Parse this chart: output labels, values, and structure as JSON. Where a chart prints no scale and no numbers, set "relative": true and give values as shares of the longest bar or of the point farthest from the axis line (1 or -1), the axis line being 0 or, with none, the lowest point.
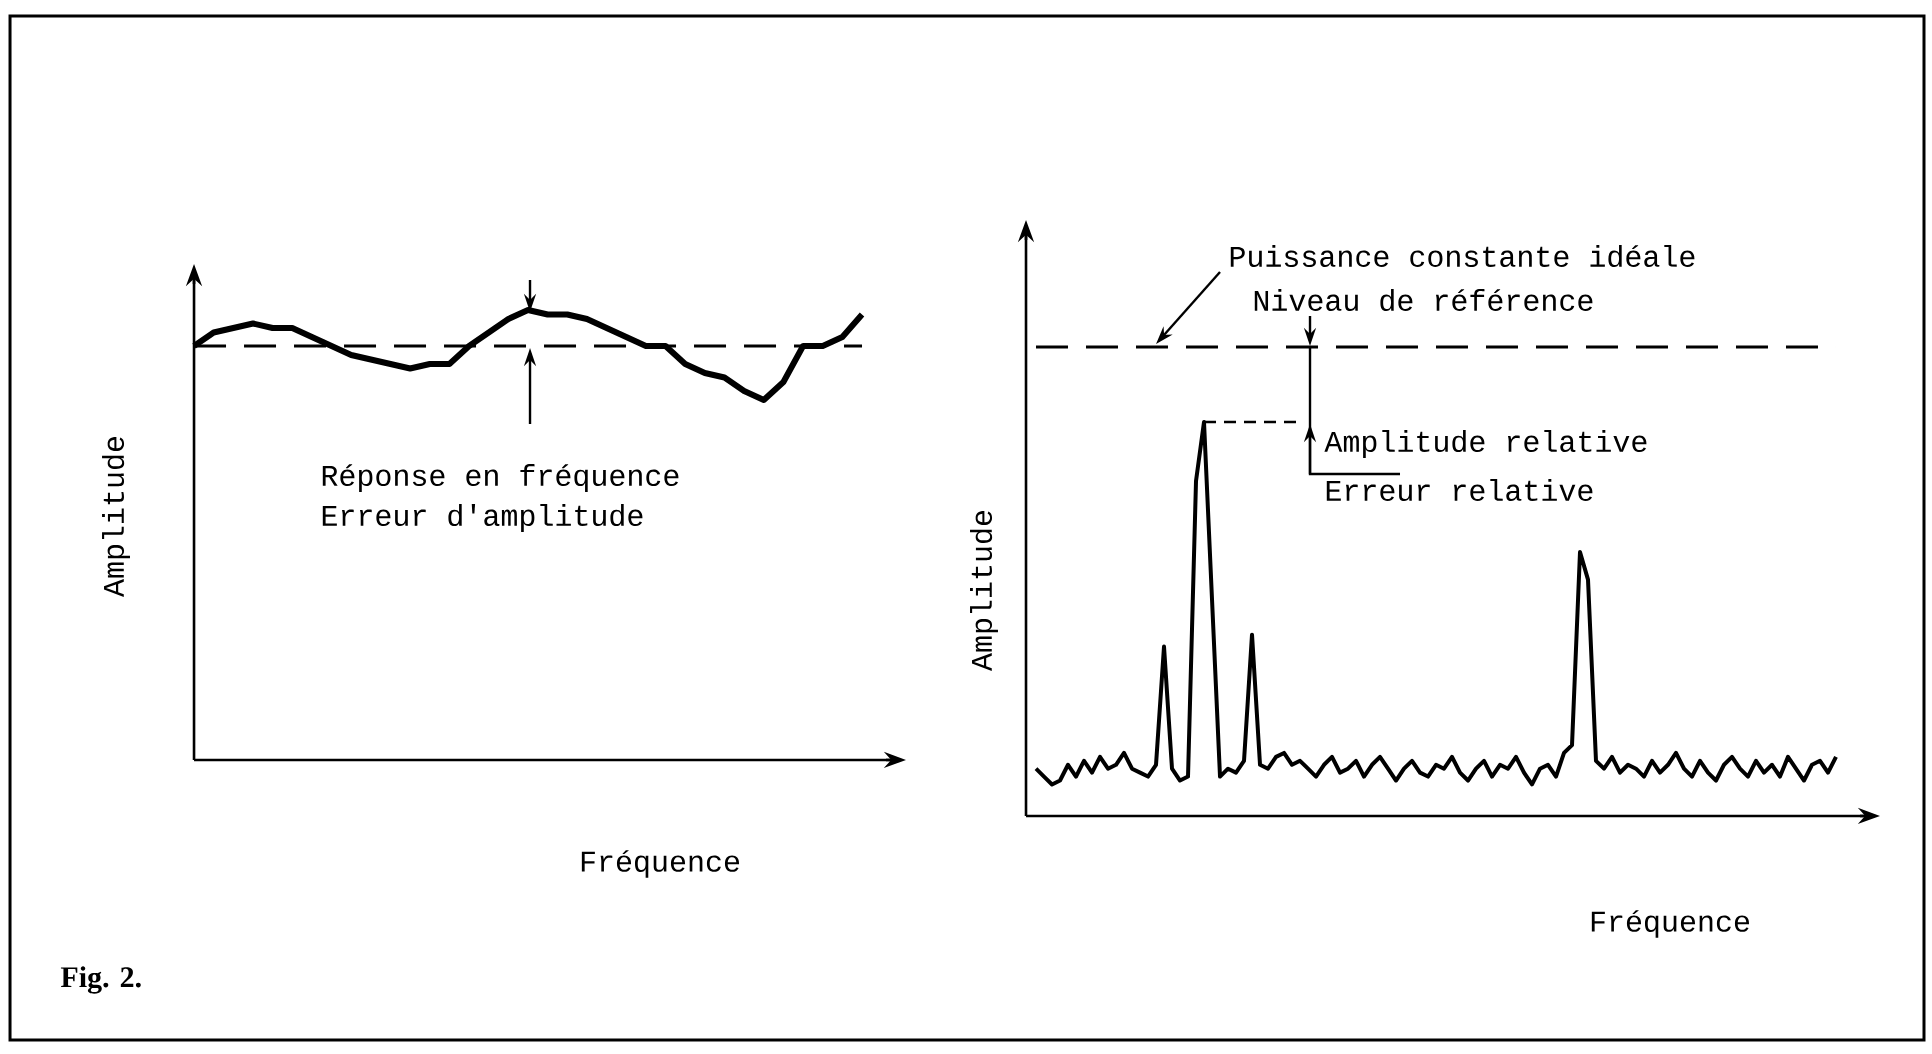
{
  "chart_data": [
    {
      "type": "line",
      "relative": true,
      "xlabel": "Fréquence",
      "ylabel": "Amplitude",
      "line_style": "solid",
      "categories": [
        null,
        null,
        null,
        null,
        null,
        null,
        null,
        null,
        null,
        null,
        null,
        null,
        null,
        null,
        null,
        null,
        null,
        null,
        null,
        null,
        null,
        null,
        null,
        null,
        null,
        null,
        null,
        null,
        null,
        null,
        null,
        null,
        null,
        null,
        null
      ],
      "series": [
        {
          "color": "#000000",
          "values": [
            0.92,
            0.95,
            0.96,
            0.97,
            0.96,
            0.96,
            0.94,
            0.92,
            0.9,
            0.89,
            0.88,
            0.87,
            0.88,
            0.88,
            0.92,
            0.95,
            0.98,
            1.0,
            0.99,
            0.99,
            0.98,
            0.96,
            0.94,
            0.92,
            0.92,
            0.88,
            0.86,
            0.85,
            0.82,
            0.8,
            0.84,
            0.92,
            0.92,
            0.94,
            0.99
          ]
        }
      ],
      "ref_lines": [
        {
          "axis": "y",
          "value": 0.92,
          "color": "#000000",
          "line_style": "dashed"
        }
      ],
      "annotations": [
        "Réponse en fréquence",
        "Erreur d'amplitude",
        "Fig. 2."
      ]
    },
    {
      "type": "line",
      "relative": true,
      "xlabel": "Fréquence",
      "ylabel": "Amplitude",
      "line_style": "solid",
      "categories": [
        null,
        null,
        null,
        null,
        null,
        null,
        null,
        null,
        null,
        null,
        null,
        null,
        null,
        null,
        null,
        null,
        null,
        null,
        null,
        null,
        null,
        null,
        null,
        null,
        null,
        null,
        null,
        null,
        null,
        null,
        null,
        null,
        null,
        null,
        null,
        null,
        null,
        null,
        null,
        null,
        null,
        null,
        null,
        null,
        null,
        null,
        null,
        null,
        null,
        null,
        null,
        null,
        null,
        null,
        null,
        null,
        null,
        null,
        null,
        null,
        null,
        null,
        null,
        null,
        null,
        null,
        null,
        null,
        null,
        null,
        null,
        null,
        null,
        null,
        null,
        null,
        null,
        null,
        null,
        null,
        null,
        null,
        null,
        null,
        null,
        null,
        null,
        null,
        null,
        null,
        null,
        null,
        null,
        null,
        null,
        null,
        null,
        null,
        null,
        null,
        null
      ],
      "series": [
        {
          "color": "#000000",
          "values": [
            0.12,
            0.1,
            0.08,
            0.09,
            0.13,
            0.1,
            0.14,
            0.11,
            0.15,
            0.12,
            0.13,
            0.16,
            0.12,
            0.11,
            0.1,
            0.13,
            0.43,
            0.12,
            0.09,
            0.1,
            0.85,
            1.0,
            0.55,
            0.1,
            0.12,
            0.11,
            0.14,
            0.46,
            0.13,
            0.12,
            0.15,
            0.16,
            0.13,
            0.14,
            0.12,
            0.1,
            0.13,
            0.15,
            0.11,
            0.12,
            0.14,
            0.1,
            0.13,
            0.15,
            0.12,
            0.09,
            0.12,
            0.14,
            0.11,
            0.1,
            0.13,
            0.12,
            0.15,
            0.11,
            0.09,
            0.12,
            0.14,
            0.1,
            0.13,
            0.12,
            0.15,
            0.11,
            0.08,
            0.12,
            0.13,
            0.1,
            0.16,
            0.18,
            0.67,
            0.6,
            0.14,
            0.12,
            0.15,
            0.11,
            0.13,
            0.12,
            0.1,
            0.14,
            0.11,
            0.13,
            0.16,
            0.12,
            0.1,
            0.14,
            0.11,
            0.09,
            0.13,
            0.15,
            0.12,
            0.1,
            0.14,
            0.11,
            0.13,
            0.1,
            0.15,
            0.12,
            0.09,
            0.13,
            0.14,
            0.11,
            0.15
          ]
        }
      ],
      "ref_lines": [
        {
          "axis": "y",
          "value": 1.19,
          "color": "#000000",
          "line_style": "dashed"
        }
      ],
      "annotations": [
        "Puissance constante idéale",
        "Niveau de référence",
        "Amplitude relative",
        "Erreur relative"
      ]
    }
  ]
}
